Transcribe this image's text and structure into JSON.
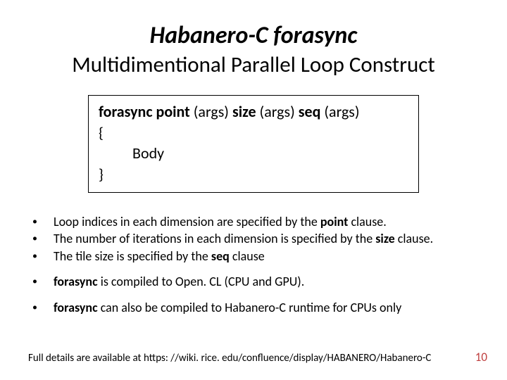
{
  "title": "Habanero-C forasync",
  "subtitle": "Multidimentional Parallel Loop Construct",
  "code": {
    "line1_kw1": "forasync",
    "line1_kw2": "point",
    "line1_args1": " (args) ",
    "line1_kw3": "size",
    "line1_args2": " (args) ",
    "line1_kw4": "seq",
    "line1_args3": " (args)",
    "open_brace": "{",
    "body": "Body",
    "close_brace": "}"
  },
  "bullets": [
    {
      "prefix": "Loop indices in each dimension are specified by the ",
      "bold": "point",
      "suffix": " clause."
    },
    {
      "prefix": "The number of iterations in each dimension is specified by the ",
      "bold": "size",
      "suffix": " clause."
    },
    {
      "prefix": "The tile size is specified by the ",
      "bold": "seq",
      "suffix": " clause"
    },
    {
      "prefix": "",
      "bold": "forasync",
      "suffix": " is compiled to Open. CL (CPU and GPU).",
      "gap": true
    },
    {
      "prefix": "",
      "bold": "forasync",
      "suffix": " can also be compiled to Habanero-C runtime for CPUs only",
      "gap": true
    }
  ],
  "footer": "Full details are available at https: //wiki. rice. edu/confluence/display/HABANERO/Habanero-C",
  "page_number": "10",
  "colors": {
    "text": "#000000",
    "pagenum": "#bf3f3f",
    "background": "#ffffff",
    "border": "#000000"
  }
}
